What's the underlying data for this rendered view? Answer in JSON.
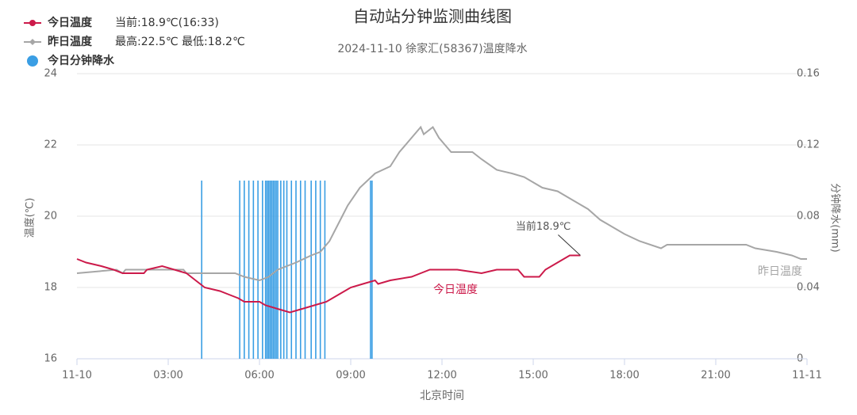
{
  "chart_data": {
    "type": "line",
    "title": "自动站分钟监测曲线图",
    "subtitle": "2024-11-10 徐家汇(58367)温度降水",
    "x_label": "北京时间",
    "y_label": "温度(℃)",
    "y2_label": "分钟降水(mm)",
    "xlim": [
      0,
      24
    ],
    "xticks": [
      {
        "value": 0,
        "label": "11-10"
      },
      {
        "value": 3,
        "label": "03:00"
      },
      {
        "value": 6,
        "label": "06:00"
      },
      {
        "value": 9,
        "label": "09:00"
      },
      {
        "value": 12,
        "label": "12:00"
      },
      {
        "value": 15,
        "label": "15:00"
      },
      {
        "value": 18,
        "label": "18:00"
      },
      {
        "value": 21,
        "label": "21:00"
      },
      {
        "value": 24,
        "label": "11-11"
      }
    ],
    "ylim": [
      16,
      24
    ],
    "yticks": [
      16,
      18,
      20,
      22,
      24
    ],
    "y2lim": [
      0,
      0.16
    ],
    "y2ticks": [
      0,
      0.04,
      0.08,
      0.12,
      0.16
    ],
    "grid": true,
    "legend": "top-left",
    "annotations": [
      "当前18.9℃",
      "今日温度",
      "昨日温度"
    ],
    "series": [
      {
        "name": "今日温度",
        "legend_note": "当前:18.9℃(16:33)",
        "color": "#cc1a4a",
        "marker": "circle",
        "x": [
          0,
          0.3,
          0.8,
          1.2,
          1.5,
          2.2,
          2.3,
          2.8,
          3.2,
          3.6,
          3.9,
          4.2,
          4.7,
          5.0,
          5.3,
          5.5,
          6.0,
          6.2,
          6.6,
          7.0,
          7.4,
          7.8,
          8.2,
          8.6,
          9.0,
          9.4,
          9.8,
          9.9,
          10.3,
          11.0,
          11.3,
          11.6,
          12.5,
          13.3,
          13.8,
          14.5,
          14.7,
          15.2,
          15.4,
          15.8,
          16.2,
          16.55
        ],
        "values": [
          18.8,
          18.7,
          18.6,
          18.5,
          18.4,
          18.4,
          18.5,
          18.6,
          18.5,
          18.4,
          18.2,
          18.0,
          17.9,
          17.8,
          17.7,
          17.6,
          17.6,
          17.5,
          17.4,
          17.3,
          17.4,
          17.5,
          17.6,
          17.8,
          18.0,
          18.1,
          18.2,
          18.1,
          18.2,
          18.3,
          18.4,
          18.5,
          18.5,
          18.4,
          18.5,
          18.5,
          18.3,
          18.3,
          18.5,
          18.7,
          18.9,
          18.9
        ]
      },
      {
        "name": "昨日温度",
        "legend_note": "最高:22.5℃ 最低:18.2℃",
        "color": "#a6a6a6",
        "marker": "diamond",
        "x": [
          0,
          1.3,
          1.5,
          1.6,
          3.5,
          3.6,
          5.2,
          5.5,
          6.0,
          6.3,
          6.6,
          7.2,
          7.7,
          8.0,
          8.3,
          8.6,
          8.9,
          9.3,
          9.8,
          10.3,
          10.6,
          11.0,
          11.3,
          11.4,
          11.7,
          11.9,
          12.3,
          13.0,
          13.3,
          13.8,
          14.3,
          14.7,
          15.3,
          15.8,
          16.2,
          16.8,
          17.2,
          17.6,
          18.0,
          18.5,
          19.2,
          19.4,
          22.0,
          22.3,
          23.0,
          23.5,
          23.8,
          24
        ],
        "values": [
          18.4,
          18.5,
          18.4,
          18.5,
          18.5,
          18.4,
          18.4,
          18.3,
          18.2,
          18.3,
          18.5,
          18.7,
          18.9,
          19.0,
          19.3,
          19.8,
          20.3,
          20.8,
          21.2,
          21.4,
          21.8,
          22.2,
          22.5,
          22.3,
          22.5,
          22.2,
          21.8,
          21.8,
          21.6,
          21.3,
          21.2,
          21.1,
          20.8,
          20.7,
          20.5,
          20.2,
          19.9,
          19.7,
          19.5,
          19.3,
          19.1,
          19.2,
          19.2,
          19.1,
          19.0,
          18.9,
          18.8,
          18.8
        ]
      },
      {
        "name": "今日分钟降水",
        "color": "#3a9ee4",
        "marker": "dot",
        "type": "bar",
        "axis": "y2",
        "x": [
          4.1,
          5.35,
          5.5,
          5.65,
          5.8,
          5.95,
          6.1,
          6.2,
          6.25,
          6.3,
          6.35,
          6.4,
          6.45,
          6.5,
          6.55,
          6.6,
          6.7,
          6.8,
          6.9,
          7.05,
          7.2,
          7.35,
          7.5,
          7.7,
          7.85,
          8.0,
          8.15,
          9.65,
          9.7
        ],
        "values": [
          0.1,
          0.1,
          0.1,
          0.1,
          0.1,
          0.1,
          0.1,
          0.1,
          0.1,
          0.1,
          0.1,
          0.1,
          0.1,
          0.1,
          0.1,
          0.1,
          0.1,
          0.1,
          0.1,
          0.1,
          0.1,
          0.1,
          0.1,
          0.1,
          0.1,
          0.1,
          0.1,
          0.1,
          0.1
        ]
      }
    ]
  }
}
